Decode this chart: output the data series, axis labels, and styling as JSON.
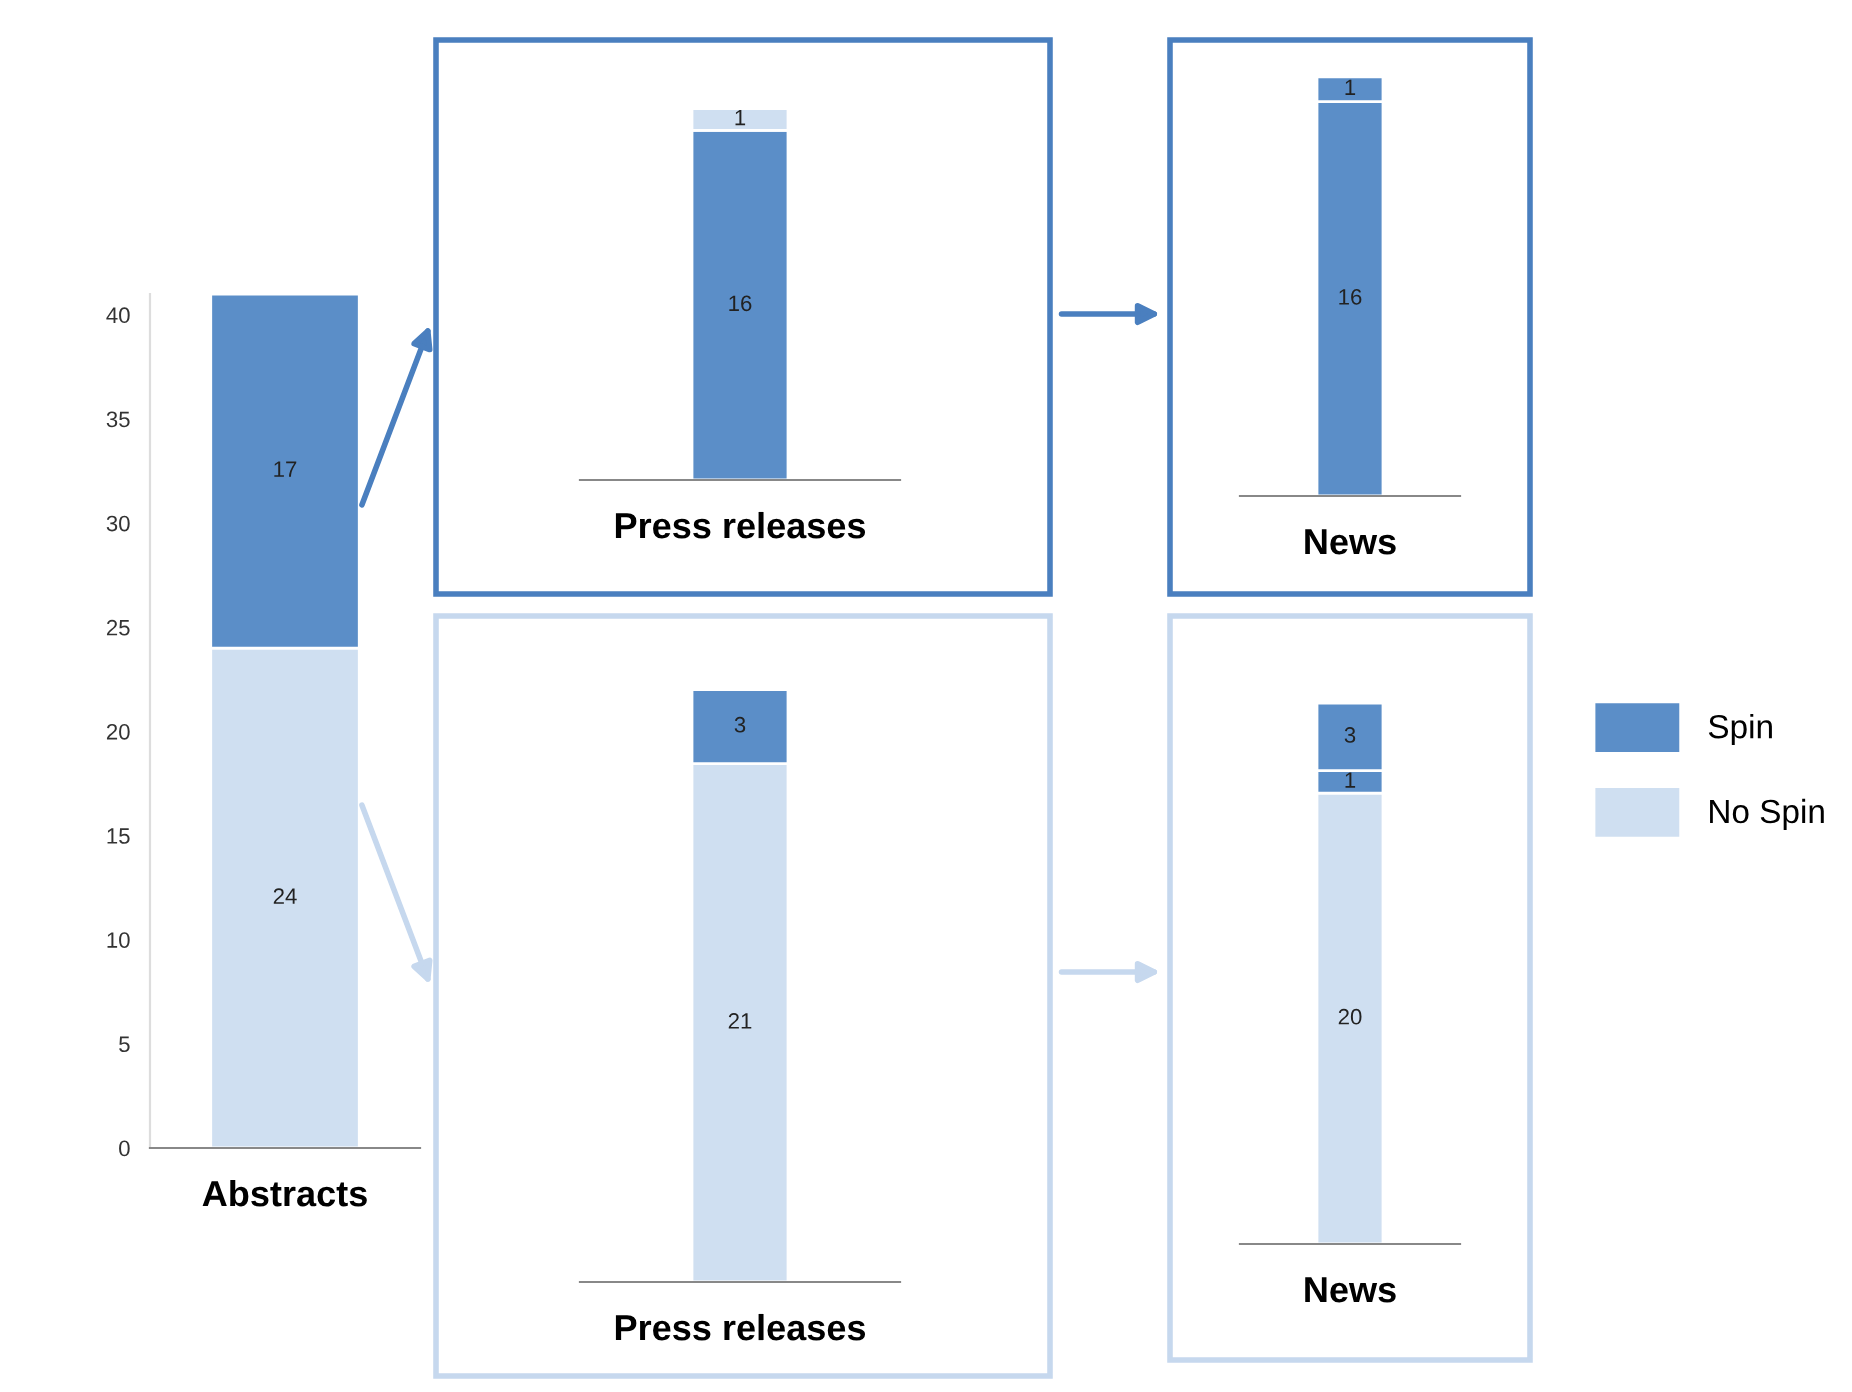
{
  "chart_data": [
    {
      "type": "bar",
      "stacked": true,
      "categories": [
        "Abstracts"
      ],
      "ylim": [
        0,
        41
      ],
      "yticks": [
        0,
        5,
        10,
        15,
        20,
        25,
        30,
        35,
        40
      ],
      "data_labels": true,
      "legend": "right",
      "series": [
        {
          "name": "No Spin",
          "color": "#cfdff1",
          "values": [
            24
          ]
        },
        {
          "name": "Spin",
          "color": "#5b8ec8",
          "values": [
            17
          ]
        }
      ]
    },
    {
      "type": "bar",
      "stacked": true,
      "categories": [
        "Press releases"
      ],
      "tick_labels": "x",
      "data_labels": true,
      "series": [
        {
          "color": "#5b8ec8",
          "values": [
            16
          ]
        },
        {
          "color": "#cfdff1",
          "values": [
            1
          ]
        }
      ]
    },
    {
      "type": "bar",
      "stacked": true,
      "categories": [
        "News"
      ],
      "tick_labels": "x",
      "data_labels": true,
      "series": [
        {
          "color": "#5b8ec8",
          "values": [
            16
          ]
        },
        {
          "color": "#5b8ec8",
          "values": [
            1
          ]
        }
      ]
    },
    {
      "type": "bar",
      "stacked": true,
      "categories": [
        "Press releases"
      ],
      "tick_labels": "x",
      "data_labels": true,
      "series": [
        {
          "color": "#cfdff1",
          "values": [
            21
          ]
        },
        {
          "color": "#5b8ec8",
          "values": [
            3
          ]
        }
      ]
    },
    {
      "type": "bar",
      "stacked": true,
      "categories": [
        "News"
      ],
      "tick_labels": "x",
      "data_labels": true,
      "series": [
        {
          "color": "#cfdff1",
          "values": [
            20
          ]
        },
        {
          "color": "#5b8ec8",
          "values": [
            1
          ]
        },
        {
          "color": "#5b8ec8",
          "values": [
            3
          ]
        }
      ]
    }
  ]
}
